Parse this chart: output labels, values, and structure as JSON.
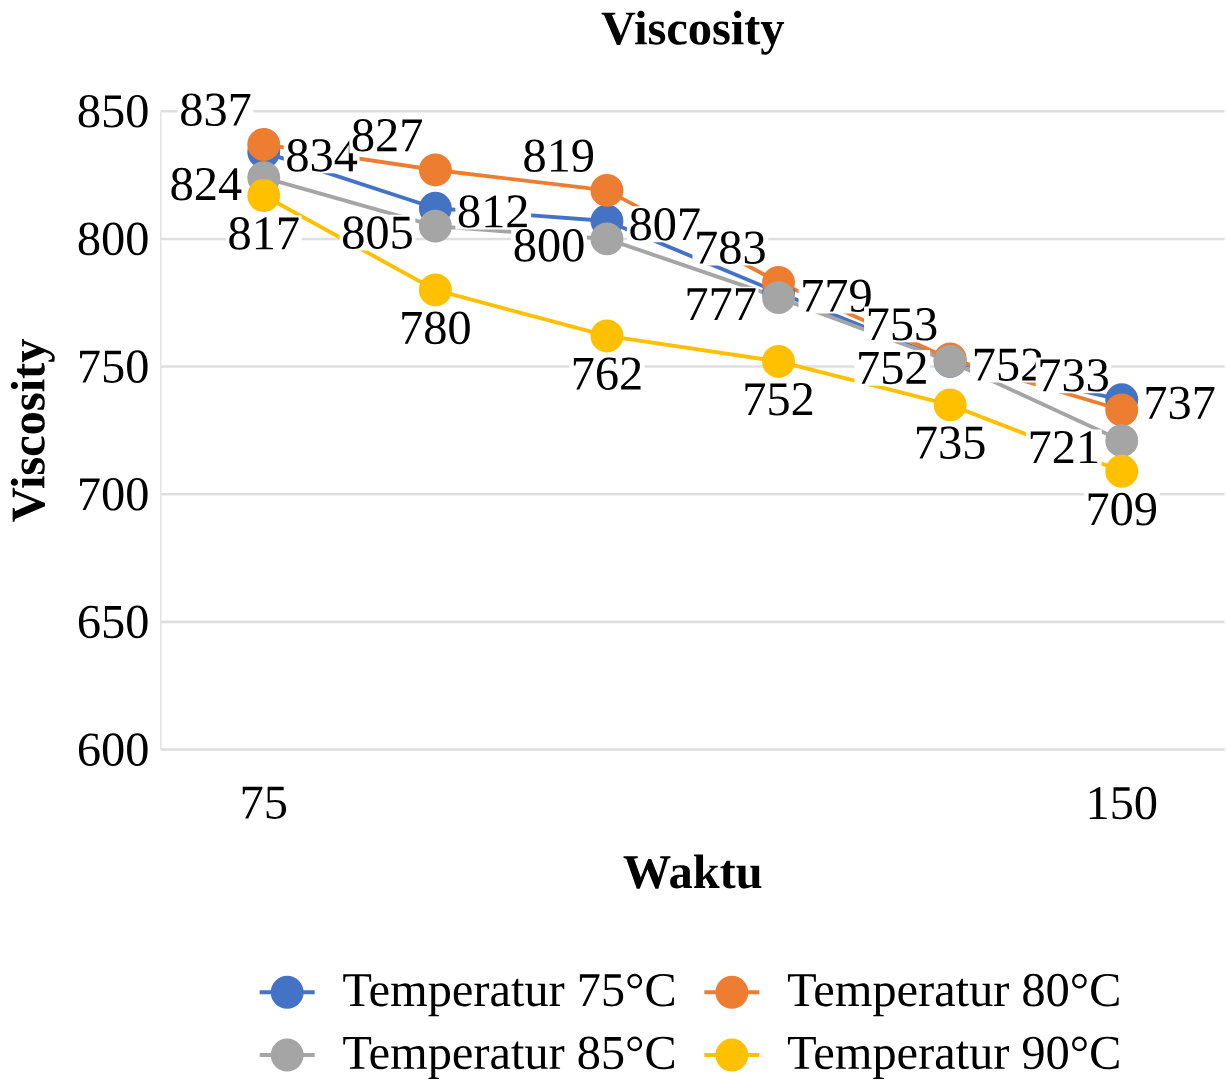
{
  "chart_data": {
    "type": "line",
    "title": "Viscosity",
    "xlabel": "Waktu",
    "ylabel": "Viscosity",
    "categories": [
      "75",
      null,
      null,
      null,
      null,
      "150"
    ],
    "series": [
      {
        "name": "Temperatur 75°C",
        "color": "#4472c4",
        "values": [
          834,
          812,
          807,
          779,
          752,
          737
        ]
      },
      {
        "name": "Temperatur 80°C",
        "color": "#ed7d31",
        "values": [
          837,
          827,
          819,
          783,
          753,
          733
        ]
      },
      {
        "name": "Temperatur 85°C",
        "color": "#a5a5a5",
        "values": [
          824,
          805,
          800,
          777,
          752,
          721
        ]
      },
      {
        "name": "Temperatur 90°C",
        "color": "#ffc000",
        "values": [
          817,
          780,
          762,
          752,
          735,
          709
        ]
      }
    ],
    "ylim": [
      600,
      850
    ],
    "yticks": [
      600,
      650,
      700,
      750,
      800,
      850
    ],
    "grid": "y",
    "legend": "bottom",
    "marker": "circle",
    "data_labels": true
  }
}
